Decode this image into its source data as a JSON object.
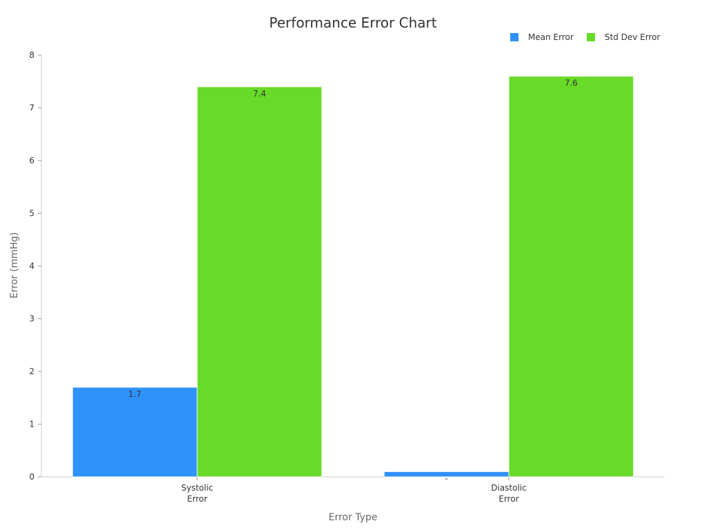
{
  "chart_data": {
    "type": "bar",
    "title": "Performance Error Chart",
    "xlabel": "Error Type",
    "ylabel": "Error (mmHg)",
    "categories": [
      [
        "Systolic",
        "Error"
      ],
      [
        "Diastolic",
        "Error"
      ]
    ],
    "series": [
      {
        "name": "Mean Error",
        "values": [
          1.7,
          0.1
        ],
        "labels": [
          "1.7",
          "-"
        ],
        "color": "#2f92fa"
      },
      {
        "name": "Std Dev Error",
        "values": [
          7.4,
          7.6
        ],
        "labels": [
          "7.4",
          "7.6"
        ],
        "color": "#67db28"
      }
    ],
    "ylim": [
      0,
      8
    ],
    "yticks": [
      0,
      1,
      2,
      3,
      4,
      5,
      6,
      7,
      8
    ],
    "legend_position": "top-right",
    "grid": false
  }
}
